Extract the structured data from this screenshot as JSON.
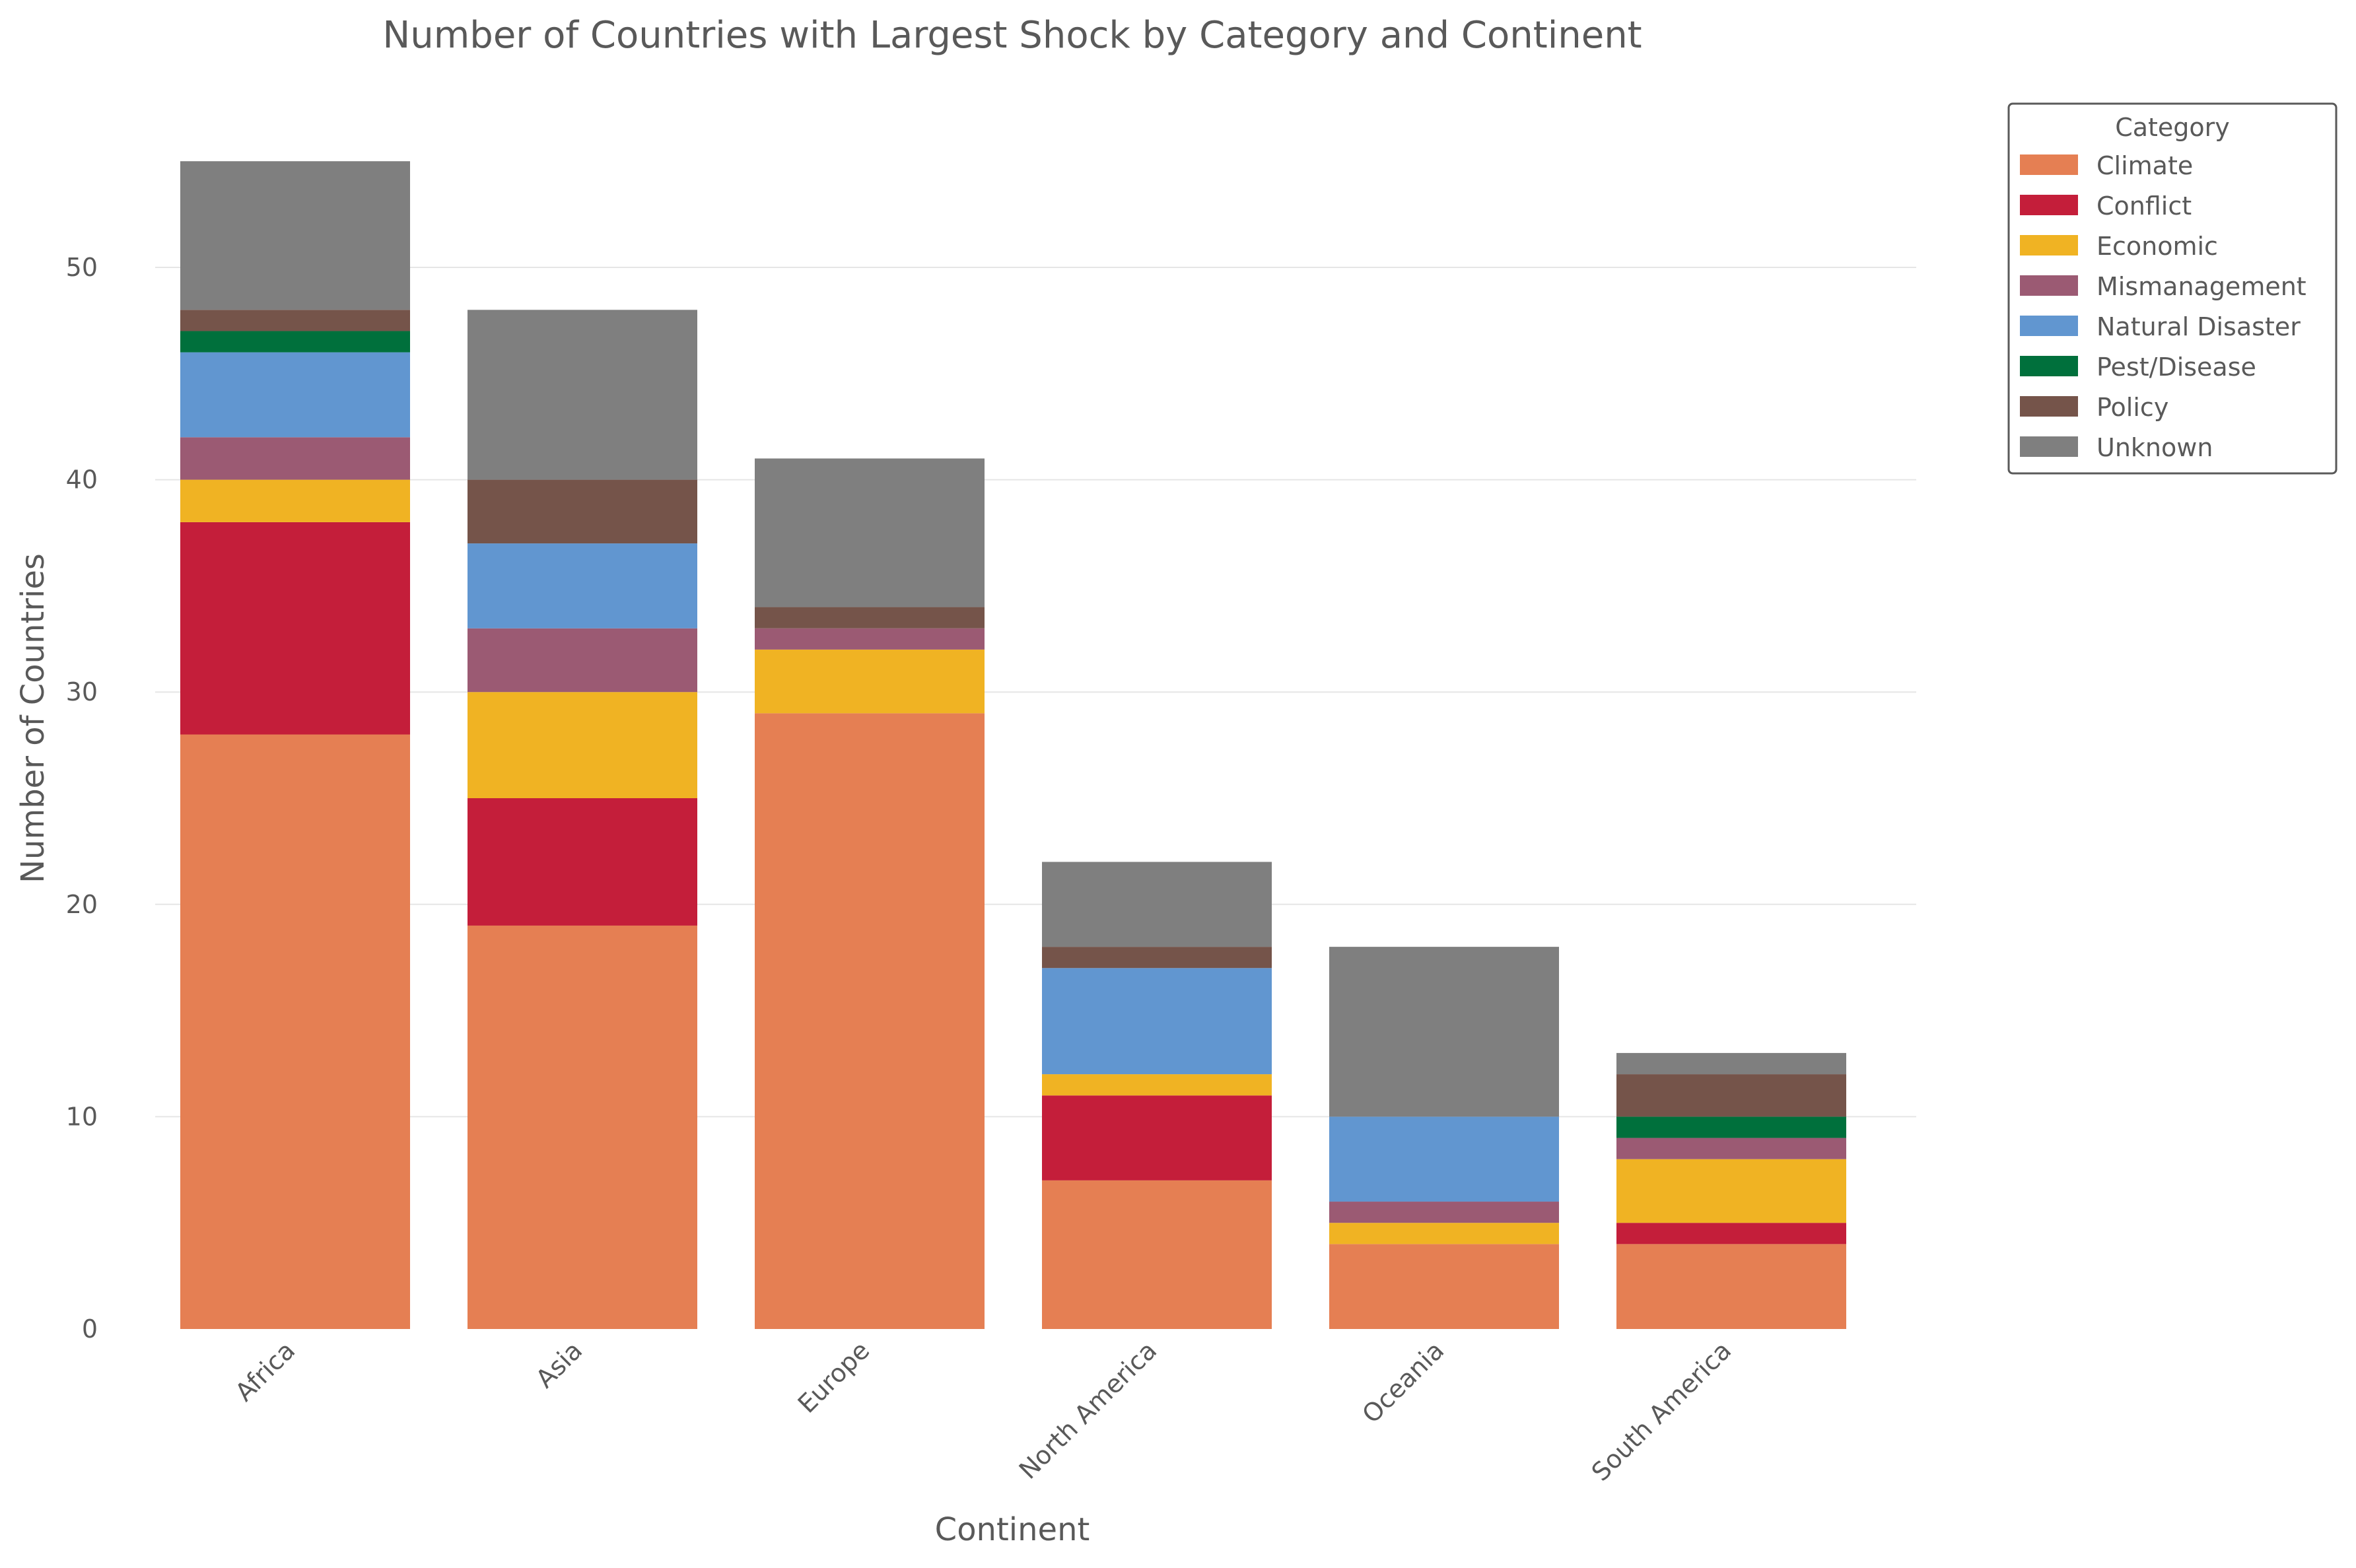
{
  "chart_data": {
    "type": "bar",
    "stacked": true,
    "title": "Number of Countries with Largest Shock by Category and Continent",
    "xlabel": "Continent",
    "ylabel": "Number of Countries",
    "ylim": [
      0,
      57
    ],
    "yticks": [
      0,
      10,
      20,
      30,
      40,
      50
    ],
    "grid": "horizontal",
    "legend": {
      "title": "Category",
      "placement": "top-right, outside plot"
    },
    "categories": [
      "Africa",
      "Asia",
      "Europe",
      "North America",
      "Oceania",
      "South America"
    ],
    "series": [
      {
        "name": "Climate",
        "color": "#E57F53",
        "values": [
          28,
          19,
          29,
          7,
          4,
          4
        ]
      },
      {
        "name": "Conflict",
        "color": "#C41E3A",
        "values": [
          10,
          6,
          0,
          4,
          0,
          1
        ]
      },
      {
        "name": "Economic",
        "color": "#F0B323",
        "values": [
          2,
          5,
          3,
          1,
          1,
          3
        ]
      },
      {
        "name": "Mismanagement",
        "color": "#9B5A73",
        "values": [
          2,
          3,
          1,
          0,
          1,
          1
        ]
      },
      {
        "name": "Natural Disaster",
        "color": "#6196D0",
        "values": [
          4,
          4,
          0,
          5,
          4,
          0
        ]
      },
      {
        "name": "Pest/Disease",
        "color": "#00703C",
        "values": [
          1,
          0,
          0,
          0,
          0,
          1
        ]
      },
      {
        "name": "Policy",
        "color": "#75544A",
        "values": [
          1,
          3,
          1,
          1,
          0,
          2
        ]
      },
      {
        "name": "Unknown",
        "color": "#7F7F7F",
        "values": [
          7,
          8,
          7,
          4,
          8,
          1
        ]
      }
    ]
  }
}
